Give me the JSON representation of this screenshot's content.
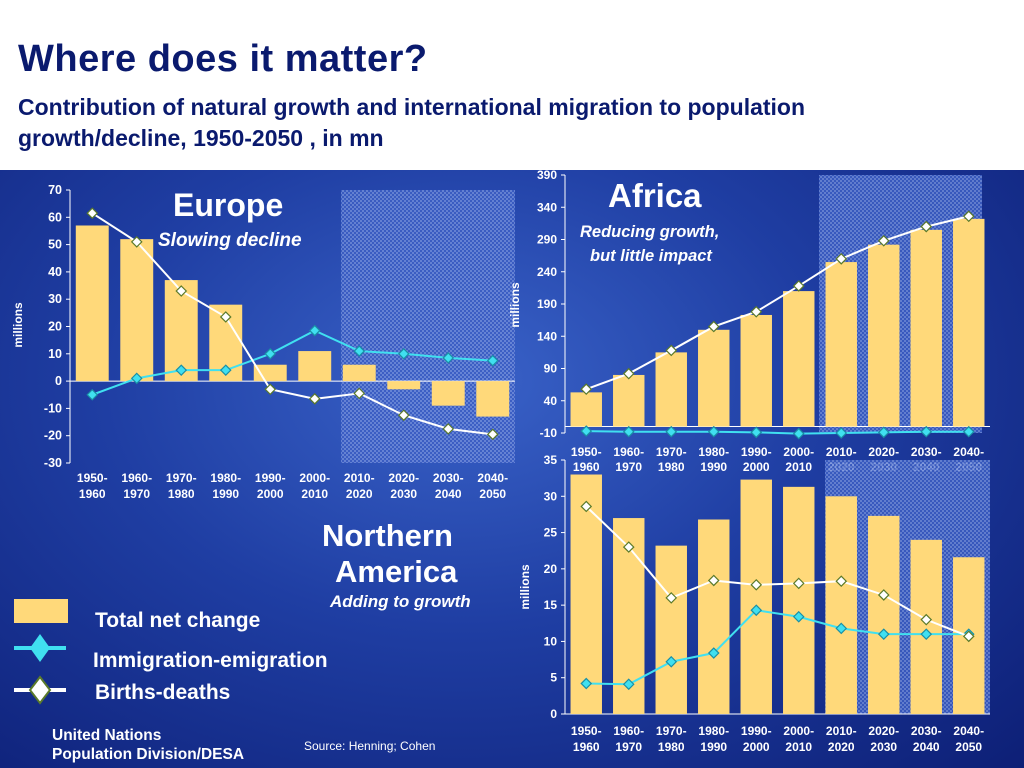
{
  "slide": {
    "title": "Where does it matter?",
    "subtitle": "Contribution of natural growth and international migration to population growth/decline, 1950-2050 , in mn",
    "source": "Source: Henning; Cohen",
    "credit_line1": "United Nations",
    "credit_line2": "Population Division/DESA"
  },
  "legend": {
    "items": [
      {
        "label": "Total net change",
        "color": "#ffd97a"
      },
      {
        "label": "Immigration-emigration",
        "color": "#40e0f0"
      },
      {
        "label": "Births-deaths",
        "color": "#ffffff"
      }
    ]
  },
  "colors": {
    "bar": "#ffd97a",
    "migration": "#40e0f0",
    "births_deaths": "#ffffff",
    "text": "#ffffff"
  },
  "chart_data": [
    {
      "type": "bar",
      "region": "Europe",
      "annotation": "Slowing decline",
      "ylabel": "millions",
      "ylim": [
        -30,
        70
      ],
      "yticks": [
        -30,
        -20,
        -10,
        0,
        10,
        20,
        30,
        40,
        50,
        60,
        70
      ],
      "categories": [
        "1950-1960",
        "1960-1970",
        "1970-1980",
        "1980-1990",
        "1990-2000",
        "2000-2010",
        "2010-2020",
        "2020-2030",
        "2030-2040",
        "2040-2050"
      ],
      "projected_from_index": 6,
      "series": [
        {
          "name": "Total net change",
          "type": "bar",
          "values": [
            57,
            52,
            37,
            28,
            6,
            11,
            6,
            -3,
            -9,
            -13
          ]
        },
        {
          "name": "Immigration-emigration",
          "type": "line",
          "values": [
            -5,
            1,
            4,
            4,
            10,
            18.5,
            11,
            10,
            8.5,
            7.5
          ]
        },
        {
          "name": "Births-deaths",
          "type": "line",
          "values": [
            61.5,
            51,
            33,
            23.5,
            -3,
            -6.5,
            -4.5,
            -12.5,
            -17.5,
            -19.5
          ]
        }
      ]
    },
    {
      "type": "bar",
      "region": "Africa",
      "annotation": "Reducing growth, but little impact",
      "ylabel": "millions",
      "ylim": [
        -10,
        390
      ],
      "yticks": [
        -10,
        40,
        90,
        140,
        190,
        240,
        290,
        340,
        390
      ],
      "categories": [
        "1950-1960",
        "1960-1970",
        "1970-1980",
        "1980-1990",
        "1990-2000",
        "2000-2010",
        "2010-2020",
        "2020-2030",
        "2030-2040",
        "2040-2050"
      ],
      "projected_from_index": 6,
      "series": [
        {
          "name": "Total net change",
          "type": "bar",
          "values": [
            53,
            80,
            115,
            150,
            173,
            210,
            255,
            282,
            305,
            322
          ]
        },
        {
          "name": "Immigration-emigration",
          "type": "line",
          "values": [
            -7,
            -8,
            -8,
            -8,
            -9,
            -11,
            -10,
            -9,
            -8,
            -8
          ]
        },
        {
          "name": "Births-deaths",
          "type": "line",
          "values": [
            58,
            82,
            118,
            155,
            178,
            218,
            260,
            288,
            310,
            326
          ]
        }
      ]
    },
    {
      "type": "bar",
      "region": "Northern America",
      "annotation": "Adding to growth",
      "ylabel": "millions",
      "ylim": [
        0,
        35
      ],
      "yticks": [
        0,
        5,
        10,
        15,
        20,
        25,
        30,
        35
      ],
      "categories": [
        "1950-1960",
        "1960-1970",
        "1970-1980",
        "1980-1990",
        "1990-2000",
        "2000-2010",
        "2010-2020",
        "2020-2030",
        "2030-2040",
        "2040-2050"
      ],
      "projected_from_index": 6,
      "series": [
        {
          "name": "Total net change",
          "type": "bar",
          "values": [
            33,
            27,
            23.2,
            26.8,
            32.3,
            31.3,
            30,
            27.3,
            24,
            21.6
          ]
        },
        {
          "name": "Immigration-emigration",
          "type": "line",
          "values": [
            4.2,
            4.1,
            7.2,
            8.4,
            14.3,
            13.4,
            11.8,
            11,
            11,
            11
          ]
        },
        {
          "name": "Births-deaths",
          "type": "line",
          "values": [
            28.6,
            23,
            16,
            18.4,
            17.8,
            18,
            18.3,
            16.4,
            13,
            10.7
          ]
        }
      ]
    }
  ]
}
